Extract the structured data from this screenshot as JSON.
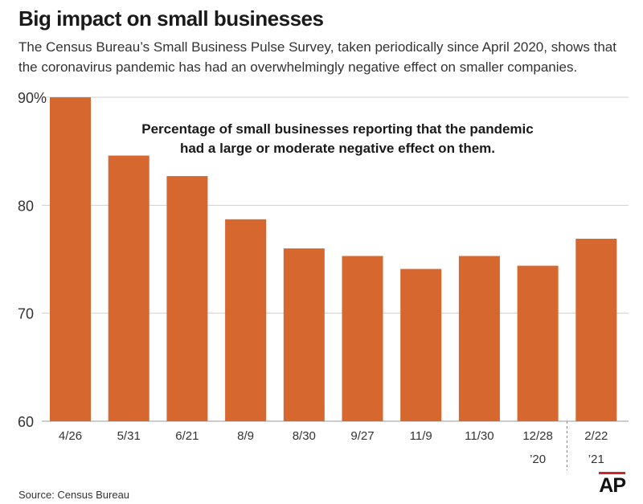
{
  "header": {
    "title": "Big impact on small businesses",
    "subtitle": "The Census Bureau’s Small Business Pulse Survey, taken periodically since April 2020, shows that the coronavirus pandemic has had an overwhelmingly negative effect on smaller companies."
  },
  "footer": {
    "source": "Source: Census Bureau",
    "logo": "AP"
  },
  "colors": {
    "bar": "#d6672f",
    "grid": "#cfcfcf",
    "text": "#231f20"
  },
  "chart_data": {
    "type": "bar",
    "title": "Percentage of small businesses reporting that the pandemic had a large or moderate negative effect on them.",
    "title_lines": [
      "Percentage of small businesses reporting that the pandemic",
      "had a large or moderate negative effect on them."
    ],
    "categories": [
      "4/26",
      "5/31",
      "6/21",
      "8/9",
      "8/30",
      "9/27",
      "11/9",
      "11/30",
      "12/28",
      "2/22"
    ],
    "year_labels": [
      {
        "category": "12/28",
        "label": "’20"
      },
      {
        "category": "2/22",
        "label": "’21"
      }
    ],
    "values": [
      90.0,
      84.6,
      82.7,
      78.7,
      76.0,
      75.3,
      74.1,
      75.3,
      74.4,
      76.9
    ],
    "ylim": [
      60,
      90
    ],
    "yticks": [
      {
        "value": 90,
        "label": "90%"
      },
      {
        "value": 80,
        "label": "80"
      },
      {
        "value": 70,
        "label": "70"
      },
      {
        "value": 60,
        "label": "60"
      }
    ],
    "grid": true,
    "xlabel": "",
    "ylabel": ""
  }
}
